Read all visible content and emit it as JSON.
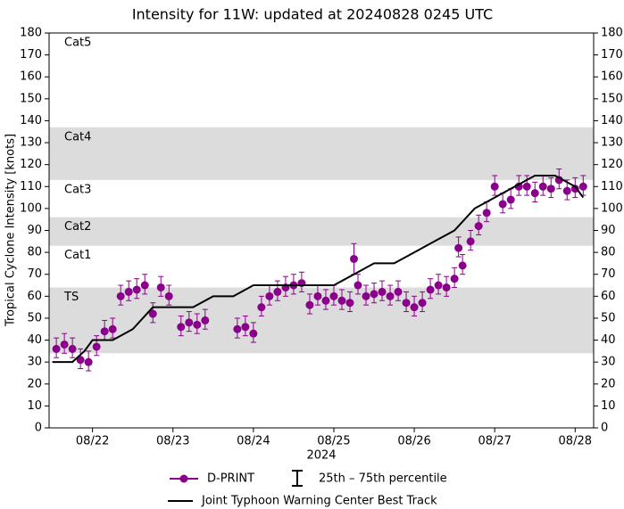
{
  "chart_data": {
    "type": "line",
    "title": "Intensity for 11W: updated at 20240828 0245 UTC",
    "ylabel": "Tropical Cyclone Intensity [knots]",
    "xlabel": "2024",
    "xlim": [
      21.46,
      28.23
    ],
    "xticks": [
      {
        "value": 22,
        "label": "08/22"
      },
      {
        "value": 23,
        "label": "08/23"
      },
      {
        "value": 24,
        "label": "08/24"
      },
      {
        "value": 25,
        "label": "08/25"
      },
      {
        "value": 26,
        "label": "08/26"
      },
      {
        "value": 27,
        "label": "08/27"
      },
      {
        "value": 28,
        "label": "08/28"
      }
    ],
    "ylim": [
      0,
      180
    ],
    "yticks": [
      0,
      10,
      20,
      30,
      40,
      50,
      60,
      70,
      80,
      90,
      100,
      110,
      120,
      130,
      140,
      150,
      160,
      170,
      180
    ],
    "bands": [
      {
        "name": "TS",
        "from": 34,
        "to": 64,
        "shaded": true
      },
      {
        "name": "Cat1",
        "from": 64,
        "to": 83,
        "shaded": false
      },
      {
        "name": "Cat2",
        "from": 83,
        "to": 96,
        "shaded": true
      },
      {
        "name": "Cat3",
        "from": 96,
        "to": 113,
        "shaded": false
      },
      {
        "name": "Cat4",
        "from": 113,
        "to": 137,
        "shaded": true
      },
      {
        "name": "Cat5",
        "from": 137,
        "to": 180,
        "shaded": false
      }
    ],
    "band_color": "#dcdcdc",
    "errorbar_label": "25th – 75th percentile",
    "series": [
      {
        "name": "D-PRINT",
        "color": "#8b008b",
        "marker": true,
        "x": [
          21.55,
          21.65,
          21.75,
          21.85,
          21.95,
          22.05,
          22.15,
          22.25,
          22.35,
          22.45,
          22.55,
          22.65,
          22.75,
          22.85,
          22.95,
          23.1,
          23.2,
          23.3,
          23.4,
          23.8,
          23.9,
          24.0,
          24.1,
          24.2,
          24.3,
          24.4,
          24.5,
          24.6,
          24.7,
          24.8,
          24.9,
          25.0,
          25.1,
          25.2,
          25.25,
          25.3,
          25.4,
          25.5,
          25.6,
          25.7,
          25.8,
          25.9,
          26.0,
          26.1,
          26.2,
          26.3,
          26.4,
          26.5,
          26.55,
          26.6,
          26.7,
          26.8,
          26.9,
          27.0,
          27.1,
          27.2,
          27.3,
          27.4,
          27.5,
          27.6,
          27.7,
          27.8,
          27.9,
          28.0,
          28.1
        ],
        "values": [
          36,
          38,
          36,
          31,
          30,
          37,
          44,
          45,
          60,
          62,
          63,
          65,
          52,
          64,
          60,
          46,
          48,
          47,
          49,
          45,
          46,
          43,
          55,
          60,
          62,
          64,
          65,
          66,
          56,
          60,
          58,
          60,
          58,
          57,
          77,
          65,
          60,
          61,
          62,
          60,
          62,
          57,
          55,
          57,
          63,
          65,
          64,
          68,
          82,
          74,
          85,
          92,
          98,
          110,
          102,
          104,
          110,
          110,
          107,
          110,
          109,
          113,
          108,
          109,
          110
        ],
        "q25": [
          32,
          34,
          32,
          27,
          26,
          33,
          40,
          41,
          56,
          58,
          59,
          61,
          48,
          60,
          56,
          42,
          44,
          43,
          45,
          41,
          42,
          39,
          51,
          56,
          58,
          60,
          61,
          62,
          52,
          56,
          54,
          56,
          54,
          53,
          70,
          61,
          56,
          57,
          58,
          56,
          58,
          53,
          51,
          53,
          59,
          61,
          60,
          64,
          78,
          70,
          81,
          88,
          94,
          106,
          98,
          100,
          106,
          106,
          103,
          106,
          105,
          109,
          104,
          105,
          106
        ],
        "q75": [
          41,
          43,
          41,
          36,
          35,
          42,
          49,
          50,
          65,
          67,
          68,
          70,
          57,
          69,
          65,
          51,
          53,
          52,
          54,
          50,
          51,
          48,
          60,
          65,
          67,
          69,
          70,
          71,
          61,
          65,
          63,
          65,
          63,
          62,
          84,
          70,
          65,
          66,
          67,
          65,
          67,
          62,
          60,
          62,
          68,
          70,
          69,
          73,
          87,
          79,
          90,
          97,
          103,
          115,
          107,
          109,
          115,
          115,
          112,
          115,
          114,
          118,
          113,
          114,
          115
        ]
      },
      {
        "name": "Joint Typhoon Warning Center Best Track",
        "color": "#000000",
        "marker": false,
        "x": [
          21.5,
          21.75,
          21.9,
          22.0,
          22.25,
          22.5,
          22.75,
          23.0,
          23.25,
          23.5,
          23.75,
          24.0,
          24.25,
          24.5,
          24.75,
          25.0,
          25.25,
          25.5,
          25.75,
          26.0,
          26.25,
          26.5,
          26.75,
          27.0,
          27.25,
          27.5,
          27.75,
          28.0,
          28.1
        ],
        "values": [
          30,
          30,
          35,
          40,
          40,
          45,
          55,
          55,
          55,
          60,
          60,
          65,
          65,
          65,
          65,
          65,
          70,
          75,
          75,
          80,
          85,
          90,
          100,
          105,
          110,
          115,
          115,
          110,
          105
        ]
      }
    ]
  }
}
